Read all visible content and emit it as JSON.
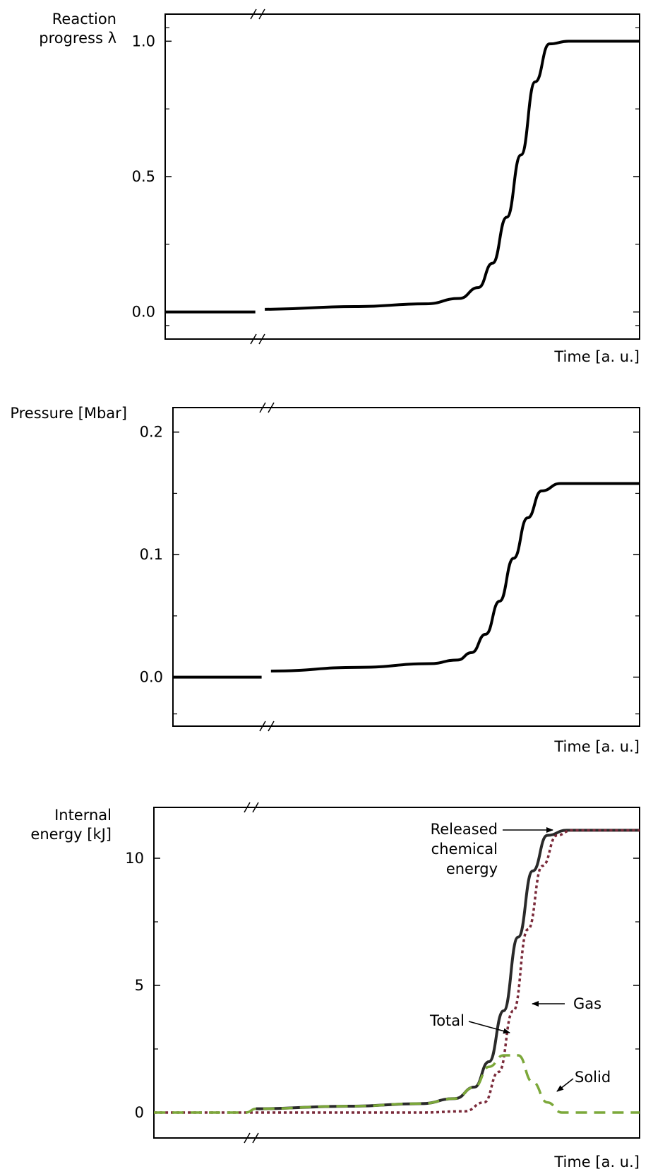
{
  "chart_data": [
    {
      "type": "line",
      "ylabel": [
        "Reaction",
        "progress λ"
      ],
      "xlabel": "Time [a. u.]",
      "ylim": [
        -0.1,
        1.1
      ],
      "xlim": [
        0,
        1
      ],
      "x_axis_break": true,
      "yticks": [
        0.0,
        0.5,
        1.0
      ],
      "ytick_labels": [
        "0.0",
        "0.5",
        "1.0"
      ],
      "series": [
        {
          "color": "#000000",
          "style": "solid",
          "x": [
            0,
            0.19,
            0.21,
            0.4,
            0.55,
            0.62,
            0.66,
            0.69,
            0.72,
            0.75,
            0.78,
            0.81,
            0.85,
            1.0
          ],
          "y": [
            0.0,
            0.0,
            0.01,
            0.02,
            0.03,
            0.05,
            0.09,
            0.18,
            0.35,
            0.58,
            0.85,
            0.99,
            1.0,
            1.0
          ]
        }
      ]
    },
    {
      "type": "line",
      "ylabel": [
        "Pressure [Mbar]"
      ],
      "xlabel": "Time [a. u.]",
      "ylim": [
        -0.04,
        0.22
      ],
      "xlim": [
        0,
        1
      ],
      "x_axis_break": true,
      "yticks": [
        0.0,
        0.1,
        0.2
      ],
      "ytick_labels": [
        "0.0",
        "0.1",
        "0.2"
      ],
      "series": [
        {
          "color": "#000000",
          "style": "solid",
          "x": [
            0,
            0.19,
            0.21,
            0.4,
            0.55,
            0.61,
            0.64,
            0.67,
            0.7,
            0.73,
            0.76,
            0.79,
            0.83,
            1.0
          ],
          "y": [
            0.0,
            0.0,
            0.005,
            0.008,
            0.011,
            0.014,
            0.02,
            0.035,
            0.062,
            0.097,
            0.13,
            0.152,
            0.158,
            0.158
          ]
        }
      ]
    },
    {
      "type": "line",
      "ylabel": [
        "Internal",
        "energy [kJ]"
      ],
      "xlabel": "Time [a. u.]",
      "ylim": [
        -1,
        12
      ],
      "xlim": [
        0,
        1
      ],
      "x_axis_break": true,
      "yticks": [
        0,
        5,
        10
      ],
      "ytick_labels": [
        "0",
        "5",
        "10"
      ],
      "series": [
        {
          "name": "Total",
          "color": "#2a2a2a",
          "style": "solid",
          "x": [
            0.21,
            0.4,
            0.55,
            0.62,
            0.66,
            0.69,
            0.72,
            0.75,
            0.78,
            0.81,
            0.85,
            1.0
          ],
          "y": [
            0.15,
            0.25,
            0.35,
            0.55,
            1.0,
            2.0,
            4.0,
            6.9,
            9.5,
            10.9,
            11.1,
            11.1
          ]
        },
        {
          "name": "Gas",
          "color": "#7a2a3a",
          "style": "dotted",
          "x": [
            0,
            0.19,
            0.21,
            0.55,
            0.64,
            0.68,
            0.71,
            0.74,
            0.77,
            0.8,
            0.83,
            0.86,
            1.0
          ],
          "y": [
            0.0,
            0.0,
            0.0,
            0.0,
            0.05,
            0.4,
            1.6,
            4.0,
            7.2,
            9.7,
            10.9,
            11.1,
            11.1
          ]
        },
        {
          "name": "Solid",
          "color": "#7ca83a",
          "style": "dashed",
          "x": [
            0,
            0.19,
            0.21,
            0.4,
            0.55,
            0.62,
            0.66,
            0.69,
            0.72,
            0.75,
            0.78,
            0.81,
            0.84,
            1.0
          ],
          "y": [
            0.0,
            0.0,
            0.15,
            0.25,
            0.35,
            0.55,
            1.0,
            1.8,
            2.25,
            2.25,
            1.2,
            0.4,
            0.0,
            0.0
          ]
        }
      ],
      "annotations": [
        {
          "text": [
            "Released",
            "chemical",
            "energy"
          ]
        },
        {
          "text": [
            "Total"
          ]
        },
        {
          "text": [
            "Gas"
          ]
        },
        {
          "text": [
            "Solid"
          ]
        }
      ]
    }
  ]
}
